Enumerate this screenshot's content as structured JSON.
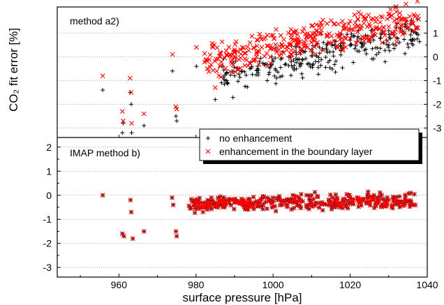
{
  "chart_data": {
    "type": "scatter",
    "xlabel": "surface pressure [hPa]",
    "ylabel": "CO₂ fit error [%]",
    "xlim": [
      944,
      1040
    ],
    "x_ticks": [
      960,
      980,
      1000,
      1020,
      1040
    ],
    "grid": "horizontal dotted",
    "legend_position": "center-right",
    "legend": [
      {
        "name": "no enhancement",
        "marker": "+",
        "color": "#000000"
      },
      {
        "name": "enhancement in the boundary layer",
        "marker": "x",
        "color": "#ff0000"
      }
    ],
    "panels": [
      {
        "label": "method a2)",
        "y_axis_side": "right",
        "ylim": [
          -3.4,
          2.1
        ],
        "y_ticks": [
          1,
          0,
          -1,
          -2,
          -3
        ],
        "series": [
          {
            "name": "no enhancement",
            "points": [
              [
                955.8,
                -1.4
              ],
              [
                960.9,
                -3.2
              ],
              [
                961.1,
                -2.8
              ],
              [
                962.9,
                -1.5
              ],
              [
                963.2,
                -2.0
              ],
              [
                963.3,
                -3.2
              ],
              [
                966.5,
                -2.9
              ],
              [
                973.9,
                -0.6
              ],
              [
                974.8,
                -2.5
              ],
              [
                975.0,
                -2.7
              ],
              [
                980.1,
                -0.4
              ],
              [
                985.0,
                -1.8
              ],
              [
                988,
                -1.0
              ],
              [
                990,
                -0.8
              ],
              [
                992,
                -0.6
              ],
              [
                994,
                -0.5
              ],
              [
                996,
                -0.4
              ],
              [
                998,
                -0.3
              ],
              [
                1000,
                -0.2
              ],
              [
                1002,
                -0.1
              ],
              [
                1004,
                0.0
              ],
              [
                1006,
                0.1
              ],
              [
                1008,
                0.2
              ],
              [
                1010,
                0.3
              ],
              [
                1012,
                0.4
              ],
              [
                1014,
                0.5
              ],
              [
                1016,
                0.5
              ],
              [
                1018,
                0.6
              ],
              [
                1020,
                0.7
              ],
              [
                1022,
                0.8
              ],
              [
                1024,
                0.9
              ],
              [
                1026,
                0.9
              ],
              [
                1028,
                1.0
              ],
              [
                1030,
                1.1
              ],
              [
                1032,
                0.8
              ],
              [
                1034,
                1.0
              ],
              [
                1036,
                1.1
              ]
            ],
            "note_density": {
              "x_range": [
                986,
                1038
              ],
              "center": [
                [
                  986,
                  -0.9
                ],
                [
                  1038,
                  1.0
                ]
              ],
              "spread": 0.7,
              "count": 260,
              "seed": 11
            }
          },
          {
            "name": "enhancement in the boundary layer",
            "points": [
              [
                955.8,
                -0.8
              ],
              [
                960.9,
                -2.3
              ],
              [
                961.1,
                -2.7
              ],
              [
                962.9,
                -0.9
              ],
              [
                963.2,
                -1.5
              ],
              [
                963.3,
                -2.8
              ],
              [
                966.5,
                -2.4
              ],
              [
                973.9,
                0.1
              ],
              [
                974.8,
                -2.1
              ],
              [
                975.0,
                -2.2
              ],
              [
                980.1,
                0.4
              ],
              [
                985.0,
                -1.3
              ],
              [
                988,
                0.1
              ],
              [
                990,
                0.3
              ],
              [
                992,
                0.4
              ],
              [
                994,
                0.6
              ],
              [
                996,
                0.7
              ],
              [
                998,
                0.8
              ],
              [
                1000,
                0.9
              ],
              [
                1002,
                0.9
              ],
              [
                1004,
                1.0
              ],
              [
                1006,
                1.1
              ],
              [
                1008,
                1.2
              ],
              [
                1010,
                1.3
              ],
              [
                1012,
                1.3
              ],
              [
                1014,
                1.4
              ],
              [
                1016,
                1.4
              ],
              [
                1018,
                1.5
              ],
              [
                1020,
                1.5
              ],
              [
                1022,
                1.6
              ],
              [
                1024,
                1.6
              ],
              [
                1026,
                1.6
              ],
              [
                1028,
                1.7
              ],
              [
                1030,
                1.8
              ],
              [
                1032,
                1.9
              ],
              [
                1034,
                1.6
              ],
              [
                1036,
                1.5
              ]
            ],
            "note_density": {
              "x_range": [
                982,
                1038
              ],
              "center": [
                [
                  982,
                  -0.2
                ],
                [
                  1038,
                  1.6
                ]
              ],
              "spread": 0.7,
              "count": 330,
              "seed": 23
            }
          }
        ]
      },
      {
        "label": "IMAP method b)",
        "y_axis_side": "left",
        "ylim": [
          -3.4,
          2.4
        ],
        "y_ticks": [
          2,
          1,
          0,
          -1,
          -2,
          -3
        ],
        "series": [
          {
            "name": "no enhancement",
            "points": [
              [
                955.8,
                0.0
              ],
              [
                960.9,
                -1.6
              ],
              [
                961.3,
                -1.7
              ],
              [
                963.0,
                -0.2
              ],
              [
                963.2,
                -0.7
              ],
              [
                963.6,
                -1.8
              ],
              [
                966.5,
                -1.5
              ],
              [
                973.8,
                -0.1
              ],
              [
                974.1,
                -0.4
              ],
              [
                974.8,
                -1.5
              ],
              [
                975.0,
                -1.7
              ],
              [
                980,
                -0.3
              ],
              [
                982,
                -0.5
              ],
              [
                984,
                -0.1
              ],
              [
                986,
                -0.4
              ],
              [
                988,
                -0.2
              ],
              [
                990,
                -0.3
              ],
              [
                992,
                -0.2
              ],
              [
                1000,
                -0.1
              ],
              [
                1010,
                0.0
              ],
              [
                1020,
                -0.1
              ],
              [
                1030,
                -0.2
              ],
              [
                1034,
                -0.3
              ],
              [
                1036,
                -0.4
              ]
            ],
            "note_density": {
              "x_range": [
                978,
                1037
              ],
              "center": [
                [
                  978,
                  -0.4
                ],
                [
                  1037,
                  -0.2
                ]
              ],
              "spread": 0.3,
              "count": 360,
              "seed": 37
            }
          },
          {
            "name": "enhancement in the boundary layer",
            "points": [
              [
                955.8,
                0.0
              ],
              [
                960.9,
                -1.6
              ],
              [
                961.3,
                -1.7
              ],
              [
                963.0,
                -0.2
              ],
              [
                963.2,
                -0.7
              ],
              [
                963.6,
                -1.8
              ],
              [
                966.5,
                -1.5
              ],
              [
                973.8,
                -0.1
              ],
              [
                974.1,
                -0.4
              ],
              [
                974.8,
                -1.5
              ],
              [
                975.0,
                -1.7
              ],
              [
                980,
                -0.3
              ],
              [
                982,
                -0.5
              ],
              [
                984,
                -0.1
              ],
              [
                986,
                -0.4
              ],
              [
                988,
                -0.2
              ],
              [
                990,
                -0.3
              ],
              [
                992,
                -0.2
              ],
              [
                1000,
                -0.1
              ],
              [
                1010,
                0.0
              ],
              [
                1020,
                -0.1
              ],
              [
                1030,
                -0.2
              ],
              [
                1034,
                -0.3
              ],
              [
                1036,
                -0.4
              ]
            ],
            "note_density": {
              "x_range": [
                978,
                1037
              ],
              "center": [
                [
                  978,
                  -0.4
                ],
                [
                  1037,
                  -0.2
                ]
              ],
              "spread": 0.3,
              "count": 360,
              "seed": 37
            }
          }
        ]
      }
    ]
  }
}
